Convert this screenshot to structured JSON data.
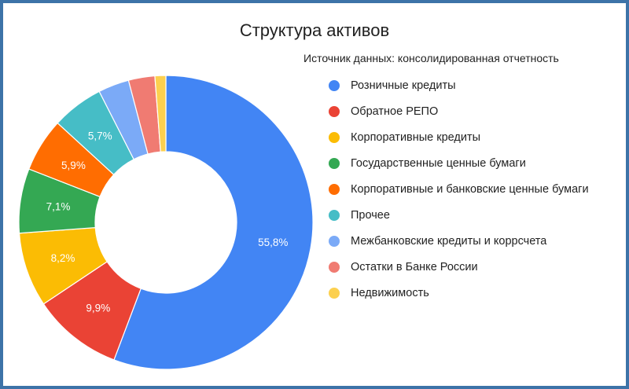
{
  "chart_data": {
    "type": "pie",
    "title": "Структура активов",
    "subtitle": "Источник данных: консолидированная отчетность",
    "legend_position": "right",
    "slices": [
      {
        "label": "Розничные кредиты",
        "value": 55.8,
        "display": "55,8%",
        "color": "#4285f4"
      },
      {
        "label": "Обратное РЕПО",
        "value": 9.9,
        "display": "9,9%",
        "color": "#ea4335"
      },
      {
        "label": "Корпоративные кредиты",
        "value": 8.2,
        "display": "8,2%",
        "color": "#fbbc04"
      },
      {
        "label": "Государственные ценные бумаги",
        "value": 7.1,
        "display": "7,1%",
        "color": "#34a853"
      },
      {
        "label": "Корпоративные и банковские ценные бумаги",
        "value": 5.9,
        "display": "5,9%",
        "color": "#ff6d01"
      },
      {
        "label": "Прочее",
        "value": 5.7,
        "display": "5,7%",
        "color": "#46bdc6"
      },
      {
        "label": "Межбанковские кредиты и коррсчета",
        "value": 3.4,
        "display": "",
        "color": "#7baaf7"
      },
      {
        "label": "Остатки в Банке России",
        "value": 2.9,
        "display": "",
        "color": "#f07b72"
      },
      {
        "label": "Недвижимость",
        "value": 1.2,
        "display": "",
        "color": "#fcd04f"
      }
    ]
  }
}
